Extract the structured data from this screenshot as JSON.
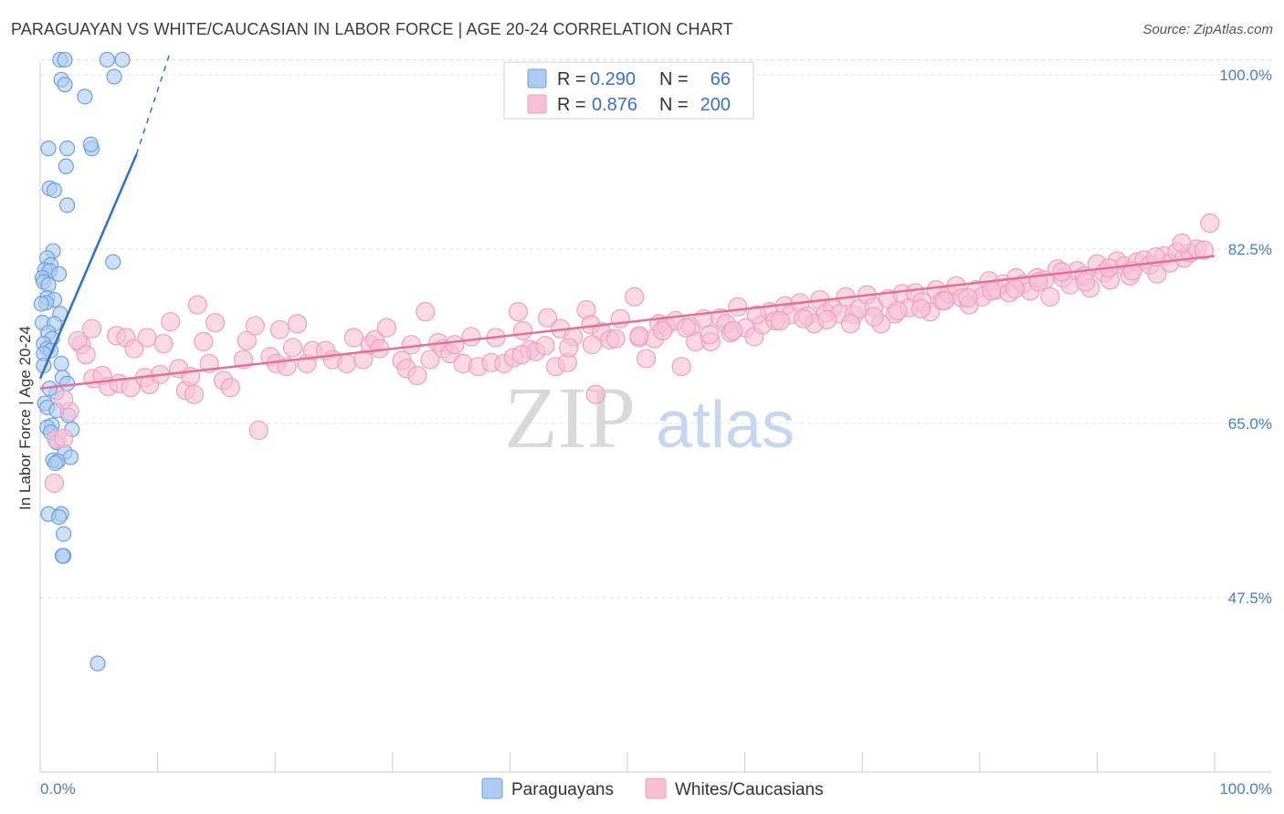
{
  "title": "PARAGUAYAN VS WHITE/CAUCASIAN IN LABOR FORCE | AGE 20-24 CORRELATION CHART",
  "source": "Source: ZipAtlas.com",
  "watermark": {
    "zip": "ZIP",
    "atlas": "atlas"
  },
  "chart_data": {
    "type": "scatter",
    "ylabel": "In Labor Force | Age 20-24",
    "xlim": [
      0,
      100
    ],
    "ylim": [
      30,
      102
    ],
    "x_tick_labels": [
      {
        "value": 0,
        "label": "0.0%"
      },
      {
        "value": 100,
        "label": "100.0%"
      }
    ],
    "y_ticks": [
      {
        "value": 100,
        "label": "100.0%"
      },
      {
        "value": 82.5,
        "label": "82.5%"
      },
      {
        "value": 65,
        "label": "65.0%"
      },
      {
        "value": 47.5,
        "label": "47.5%"
      }
    ],
    "grid": true,
    "legend_placement": "top-center",
    "colors": {
      "paraguayan_fill": "#aecbf1",
      "paraguayan_stroke": "#6f9fe0",
      "paraguayan_line": "#2f6fce",
      "white_fill": "#f7c0d3",
      "white_stroke": "#eea0bc",
      "white_line": "#e4709a"
    },
    "series": [
      {
        "name": "Paraguayans",
        "legend_label": "Paraguayans",
        "R_label": "R =",
        "R": "0.290",
        "N_label": "N =",
        "N": "66",
        "trend": {
          "x": [
            0,
            8.2
          ],
          "y": [
            69.5,
            92.0
          ],
          "dashed_to": {
            "x": 11,
            "y": 102
          }
        },
        "points": [
          [
            1.7,
            101.5
          ],
          [
            2.1,
            101.5
          ],
          [
            5.7,
            101.5
          ],
          [
            7.0,
            101.5
          ],
          [
            1.8,
            99.5
          ],
          [
            6.3,
            99.8
          ],
          [
            2.1,
            99.0
          ],
          [
            3.8,
            97.8
          ],
          [
            0.7,
            92.6
          ],
          [
            2.3,
            92.6
          ],
          [
            4.4,
            92.6
          ],
          [
            4.3,
            93.0
          ],
          [
            2.2,
            90.8
          ],
          [
            0.8,
            88.6
          ],
          [
            1.2,
            88.4
          ],
          [
            2.3,
            86.9
          ],
          [
            1.1,
            82.3
          ],
          [
            0.6,
            81.6
          ],
          [
            6.2,
            81.2
          ],
          [
            0.9,
            80.9
          ],
          [
            0.4,
            80.4
          ],
          [
            0.8,
            80.3
          ],
          [
            1.6,
            80.0
          ],
          [
            0.2,
            79.6
          ],
          [
            0.3,
            79.2
          ],
          [
            0.7,
            78.9
          ],
          [
            0.6,
            77.6
          ],
          [
            1.2,
            77.4
          ],
          [
            0.5,
            77.1
          ],
          [
            0.1,
            77.0
          ],
          [
            1.7,
            76.0
          ],
          [
            0.2,
            75.1
          ],
          [
            1.2,
            75.0
          ],
          [
            0.7,
            74.1
          ],
          [
            1.0,
            73.5
          ],
          [
            0.3,
            73.0
          ],
          [
            0.6,
            72.5
          ],
          [
            0.9,
            72.3
          ],
          [
            0.3,
            72.0
          ],
          [
            1.8,
            71.0
          ],
          [
            1.9,
            69.6
          ],
          [
            1.4,
            68.1
          ],
          [
            0.4,
            67.0
          ],
          [
            0.6,
            66.6
          ],
          [
            2.4,
            65.8
          ],
          [
            1.0,
            64.8
          ],
          [
            0.6,
            64.6
          ],
          [
            2.7,
            64.4
          ],
          [
            0.9,
            64.1
          ],
          [
            1.4,
            63.1
          ],
          [
            2.1,
            62.1
          ],
          [
            2.6,
            61.6
          ],
          [
            1.1,
            61.3
          ],
          [
            1.5,
            61.2
          ],
          [
            1.3,
            61.0
          ],
          [
            1.8,
            55.9
          ],
          [
            0.7,
            55.9
          ],
          [
            1.6,
            55.6
          ],
          [
            2.0,
            53.9
          ],
          [
            2.0,
            51.7
          ],
          [
            1.9,
            51.7
          ],
          [
            4.9,
            40.9
          ],
          [
            0.3,
            70.8
          ],
          [
            0.8,
            68.5
          ],
          [
            2.3,
            69.0
          ],
          [
            1.4,
            66.3
          ]
        ]
      },
      {
        "name": "Whites/Caucasians",
        "legend_label": "Whites/Caucasians",
        "R_label": "R =",
        "R": "0.876",
        "N_label": "N =",
        "N": "200",
        "trend": {
          "x": [
            0,
            100
          ],
          "y": [
            68.5,
            81.8
          ]
        },
        "points": [
          [
            1.2,
            59.0
          ],
          [
            1.4,
            63.4
          ],
          [
            2.0,
            63.5
          ],
          [
            2.5,
            66.2
          ],
          [
            2.0,
            67.4
          ],
          [
            3.5,
            72.9
          ],
          [
            3.2,
            73.3
          ],
          [
            3.9,
            71.9
          ],
          [
            4.5,
            69.5
          ],
          [
            4.4,
            74.5
          ],
          [
            5.3,
            69.8
          ],
          [
            5.8,
            68.7
          ],
          [
            6.5,
            73.8
          ],
          [
            6.7,
            69.0
          ],
          [
            7.3,
            73.6
          ],
          [
            7.7,
            68.6
          ],
          [
            8.0,
            72.5
          ],
          [
            8.9,
            69.6
          ],
          [
            9.1,
            73.6
          ],
          [
            9.3,
            68.9
          ],
          [
            10.2,
            69.9
          ],
          [
            10.5,
            73.0
          ],
          [
            11.1,
            75.2
          ],
          [
            11.8,
            70.5
          ],
          [
            12.4,
            68.3
          ],
          [
            12.8,
            69.7
          ],
          [
            13.1,
            67.9
          ],
          [
            13.4,
            76.9
          ],
          [
            13.9,
            73.2
          ],
          [
            14.4,
            71.0
          ],
          [
            14.9,
            75.1
          ],
          [
            15.6,
            69.3
          ],
          [
            16.2,
            68.6
          ],
          [
            17.3,
            71.4
          ],
          [
            17.6,
            73.3
          ],
          [
            18.3,
            74.8
          ],
          [
            18.6,
            64.3
          ],
          [
            19.6,
            71.7
          ],
          [
            20.1,
            71.0
          ],
          [
            20.4,
            74.4
          ],
          [
            21.0,
            70.7
          ],
          [
            21.5,
            72.6
          ],
          [
            21.9,
            75.0
          ],
          [
            22.7,
            71.0
          ],
          [
            23.2,
            72.3
          ],
          [
            24.3,
            72.3
          ],
          [
            24.9,
            71.4
          ],
          [
            26.1,
            71.0
          ],
          [
            26.7,
            73.6
          ],
          [
            27.5,
            71.4
          ],
          [
            28.1,
            72.9
          ],
          [
            28.5,
            73.4
          ],
          [
            28.9,
            72.5
          ],
          [
            29.5,
            74.6
          ],
          [
            30.8,
            71.3
          ],
          [
            31.2,
            70.5
          ],
          [
            31.6,
            72.9
          ],
          [
            32.1,
            69.8
          ],
          [
            32.8,
            76.2
          ],
          [
            33.2,
            71.4
          ],
          [
            33.9,
            73.1
          ],
          [
            34.3,
            72.5
          ],
          [
            34.9,
            72.0
          ],
          [
            35.3,
            72.9
          ],
          [
            36.0,
            71.0
          ],
          [
            36.7,
            73.7
          ],
          [
            37.3,
            70.7
          ],
          [
            38.4,
            71.1
          ],
          [
            38.8,
            73.6
          ],
          [
            39.5,
            71.0
          ],
          [
            40.3,
            71.6
          ],
          [
            40.7,
            76.2
          ],
          [
            41.1,
            74.3
          ],
          [
            41.7,
            72.4
          ],
          [
            42.2,
            72.2
          ],
          [
            43.2,
            75.6
          ],
          [
            43.9,
            70.7
          ],
          [
            44.3,
            74.5
          ],
          [
            44.9,
            71.1
          ],
          [
            45.4,
            73.7
          ],
          [
            46.5,
            76.4
          ],
          [
            46.9,
            74.9
          ],
          [
            47.3,
            67.9
          ],
          [
            47.8,
            74.2
          ],
          [
            48.5,
            73.4
          ],
          [
            49.4,
            75.5
          ],
          [
            50.6,
            77.7
          ],
          [
            51.0,
            73.6
          ],
          [
            51.6,
            71.5
          ],
          [
            52.3,
            73.5
          ],
          [
            52.7,
            75.0
          ],
          [
            53.3,
            74.8
          ],
          [
            54.1,
            75.3
          ],
          [
            54.6,
            70.7
          ],
          [
            55.4,
            74.7
          ],
          [
            55.8,
            73.2
          ],
          [
            56.5,
            75.5
          ],
          [
            57.1,
            73.2
          ],
          [
            57.9,
            75.6
          ],
          [
            58.4,
            75.0
          ],
          [
            58.8,
            74.1
          ],
          [
            59.4,
            76.7
          ],
          [
            60.1,
            74.6
          ],
          [
            60.8,
            73.7
          ],
          [
            61.5,
            74.9
          ],
          [
            62.1,
            76.2
          ],
          [
            62.6,
            75.3
          ],
          [
            63.4,
            76.8
          ],
          [
            63.9,
            75.9
          ],
          [
            64.7,
            77.1
          ],
          [
            65.3,
            75.8
          ],
          [
            65.9,
            75.0
          ],
          [
            66.4,
            77.4
          ],
          [
            66.9,
            76.1
          ],
          [
            67.5,
            76.6
          ],
          [
            68.1,
            76.0
          ],
          [
            68.6,
            77.7
          ],
          [
            69.3,
            75.9
          ],
          [
            69.8,
            76.5
          ],
          [
            70.4,
            77.9
          ],
          [
            71.0,
            76.7
          ],
          [
            71.6,
            75.0
          ],
          [
            72.2,
            77.5
          ],
          [
            72.8,
            76.0
          ],
          [
            73.4,
            78.0
          ],
          [
            74.0,
            76.6
          ],
          [
            74.5,
            78.1
          ],
          [
            75.1,
            77.2
          ],
          [
            75.8,
            76.2
          ],
          [
            76.3,
            78.4
          ],
          [
            76.8,
            77.3
          ],
          [
            77.4,
            78.0
          ],
          [
            78.0,
            78.8
          ],
          [
            78.5,
            77.6
          ],
          [
            79.1,
            76.9
          ],
          [
            79.7,
            78.4
          ],
          [
            80.2,
            77.7
          ],
          [
            80.8,
            79.3
          ],
          [
            81.4,
            78.4
          ],
          [
            82.0,
            79.0
          ],
          [
            82.5,
            78.1
          ],
          [
            83.1,
            79.6
          ],
          [
            83.7,
            79.0
          ],
          [
            84.3,
            78.3
          ],
          [
            84.9,
            79.6
          ],
          [
            85.5,
            79.4
          ],
          [
            86.0,
            77.7
          ],
          [
            86.6,
            80.5
          ],
          [
            87.1,
            79.6
          ],
          [
            87.7,
            78.9
          ],
          [
            88.3,
            80.3
          ],
          [
            88.9,
            79.8
          ],
          [
            89.4,
            78.6
          ],
          [
            90.0,
            81.0
          ],
          [
            90.6,
            80.1
          ],
          [
            91.1,
            79.4
          ],
          [
            91.7,
            81.3
          ],
          [
            92.3,
            80.8
          ],
          [
            92.8,
            79.8
          ],
          [
            93.4,
            81.2
          ],
          [
            94.0,
            81.4
          ],
          [
            94.5,
            80.9
          ],
          [
            95.1,
            80.0
          ],
          [
            95.7,
            81.8
          ],
          [
            96.2,
            81.1
          ],
          [
            96.8,
            82.2
          ],
          [
            97.4,
            81.6
          ],
          [
            97.9,
            82.1
          ],
          [
            98.5,
            82.5
          ],
          [
            99.1,
            82.4
          ],
          [
            99.6,
            85.1
          ],
          [
            97.2,
            83.1
          ],
          [
            95.0,
            81.7
          ],
          [
            93.0,
            80.3
          ],
          [
            91.0,
            80.6
          ],
          [
            89.0,
            79.2
          ],
          [
            87.0,
            80.2
          ],
          [
            85.0,
            79.2
          ],
          [
            83.0,
            78.5
          ],
          [
            81.0,
            78.3
          ],
          [
            79.0,
            77.6
          ],
          [
            77.0,
            77.3
          ],
          [
            75.0,
            76.5
          ],
          [
            73.0,
            76.3
          ],
          [
            71.0,
            75.7
          ],
          [
            69.0,
            75.0
          ],
          [
            67.0,
            75.4
          ],
          [
            65.0,
            75.5
          ],
          [
            63.0,
            75.3
          ],
          [
            61.0,
            75.9
          ],
          [
            59.0,
            74.3
          ],
          [
            57.0,
            73.9
          ],
          [
            55.0,
            74.6
          ],
          [
            53.0,
            74.3
          ],
          [
            51.0,
            73.8
          ],
          [
            49.0,
            73.5
          ],
          [
            47.0,
            72.9
          ],
          [
            45.0,
            72.6
          ],
          [
            43.0,
            72.8
          ],
          [
            41.0,
            71.9
          ]
        ]
      }
    ]
  }
}
